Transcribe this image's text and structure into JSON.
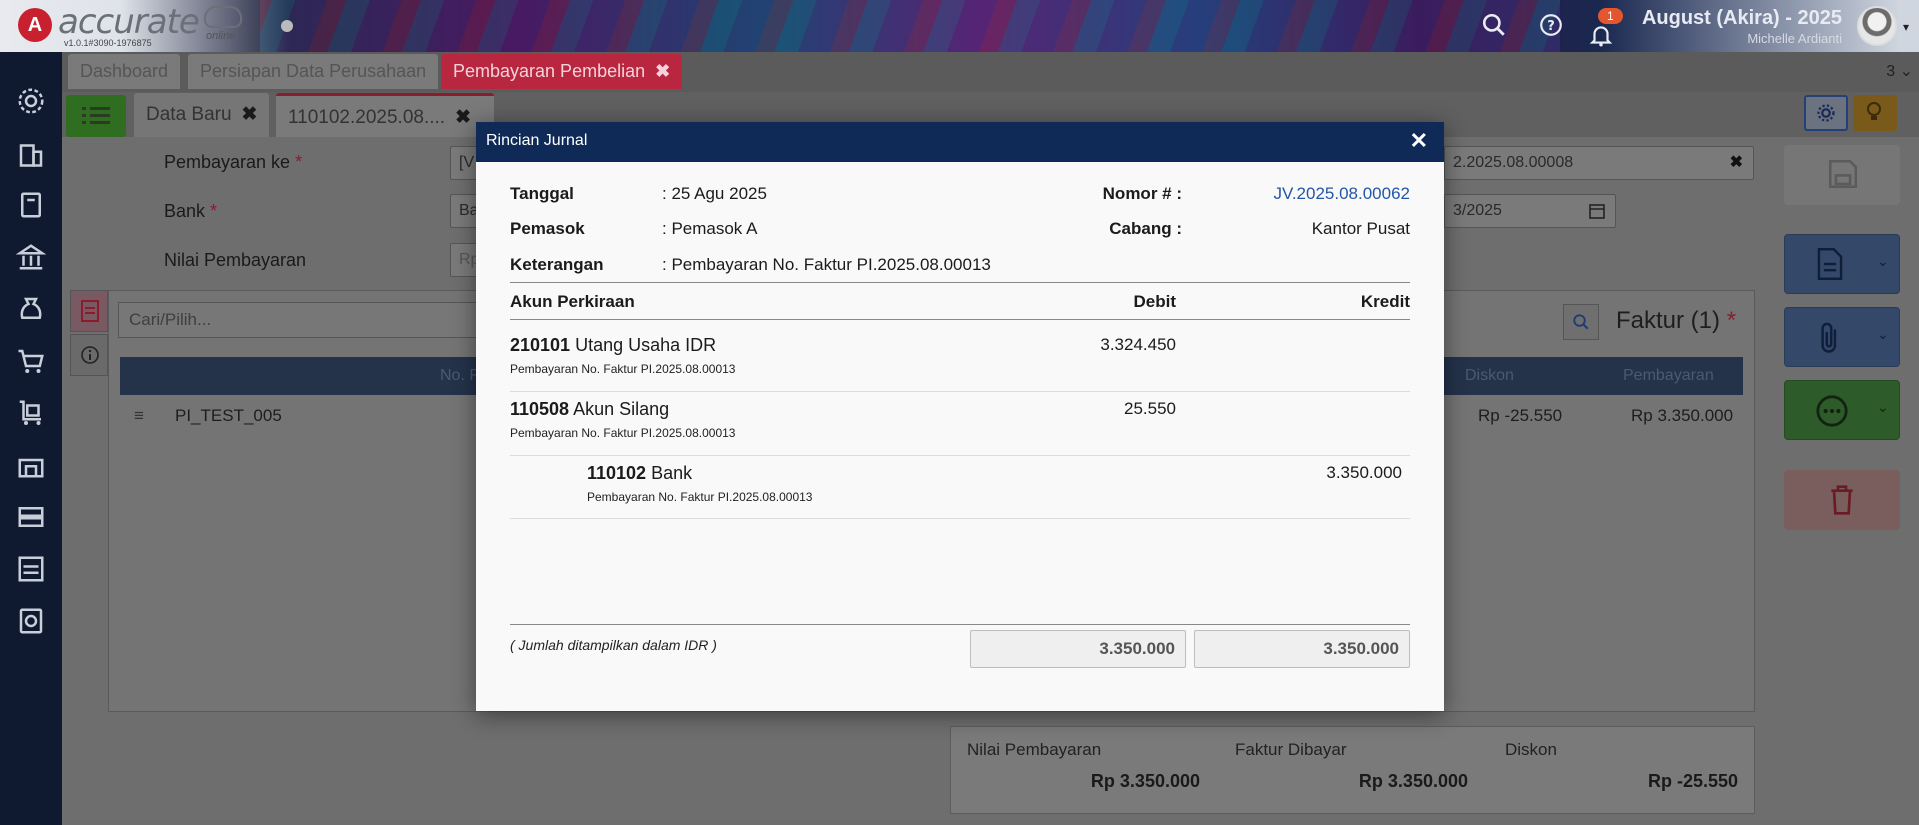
{
  "header": {
    "logo_text": "accurate",
    "logo_sub": "online",
    "version": "v1.0.1#3090-1976875",
    "notification_count": "1",
    "company": "August (Akira) - 2025",
    "user": "Michelle Ardianti"
  },
  "sidebar": {
    "icons": [
      "gear-icon",
      "building-icon",
      "book-icon",
      "bank-icon",
      "money-bag-icon",
      "cart-icon",
      "delivery-cart-icon",
      "warehouse-icon",
      "inventory-icon",
      "tax-icon",
      "report-icon"
    ]
  },
  "tabs_top": {
    "items": [
      {
        "label": "Dashboard"
      },
      {
        "label": "Persiapan Data Perusahaan"
      },
      {
        "label": "Pembayaran Pembelian"
      }
    ],
    "count": "3"
  },
  "tabs_doc": {
    "items": [
      {
        "label": "Data Baru"
      },
      {
        "label": "110102.2025.08...."
      }
    ]
  },
  "form": {
    "pembayaran_ke_label": "Pembayaran ke",
    "pembayaran_ke_value": "[V",
    "bank_label": "Bank",
    "bank_value": "Ba",
    "nilai_label": "Nilai Pembayaran",
    "nilai_placeholder": "Rp",
    "number_value": "2.2025.08.00008",
    "date_value": "3/2025",
    "search_placeholder": "Cari/Pilih...",
    "faktur_title": "Faktur (1)",
    "grid_headers": {
      "no": "No. F",
      "diskon": "Diskon",
      "pembayaran": "Pembayaran"
    },
    "row": {
      "no": "PI_TEST_005",
      "diskon": "Rp -25.550",
      "pembayaran": "Rp 3.350.000"
    }
  },
  "summary": {
    "nilai_label": "Nilai Pembayaran",
    "nilai_value": "Rp 3.350.000",
    "faktur_label": "Faktur Dibayar",
    "faktur_value": "Rp 3.350.000",
    "diskon_label": "Diskon",
    "diskon_value": "Rp -25.550"
  },
  "modal": {
    "title": "Rincian Jurnal",
    "tanggal_label": "Tanggal",
    "tanggal_value": ": 25 Agu 2025",
    "pemasok_label": "Pemasok",
    "pemasok_value": ": Pemasok A",
    "keterangan_label": "Keterangan",
    "keterangan_value": ": Pembayaran No. Faktur PI.2025.08.00013",
    "nomor_label": "Nomor # :",
    "nomor_value": "JV.2025.08.00062",
    "cabang_label": "Cabang :",
    "cabang_value": "Kantor Pusat",
    "col_akun": "Akun Perkiraan",
    "col_debit": "Debit",
    "col_kredit": "Kredit",
    "rows": [
      {
        "code": "210101",
        "name": "Utang Usaha IDR",
        "desc": "Pembayaran No. Faktur PI.2025.08.00013",
        "debit": "3.324.450",
        "kredit": ""
      },
      {
        "code": "110508",
        "name": "Akun Silang",
        "desc": "Pembayaran No. Faktur PI.2025.08.00013",
        "debit": "25.550",
        "kredit": ""
      },
      {
        "code": "110102",
        "name": "Bank",
        "desc": "Pembayaran No. Faktur PI.2025.08.00013",
        "debit": "",
        "kredit": "3.350.000"
      }
    ],
    "footnote": "( Jumlah ditampilkan dalam IDR )",
    "total_debit": "3.350.000",
    "total_kredit": "3.350.000"
  },
  "colors": {
    "modal_header": "#0f2a57",
    "journal_number": "#2456a6",
    "active_tab": "#b8263f",
    "sidebar": "#0f1a30"
  }
}
